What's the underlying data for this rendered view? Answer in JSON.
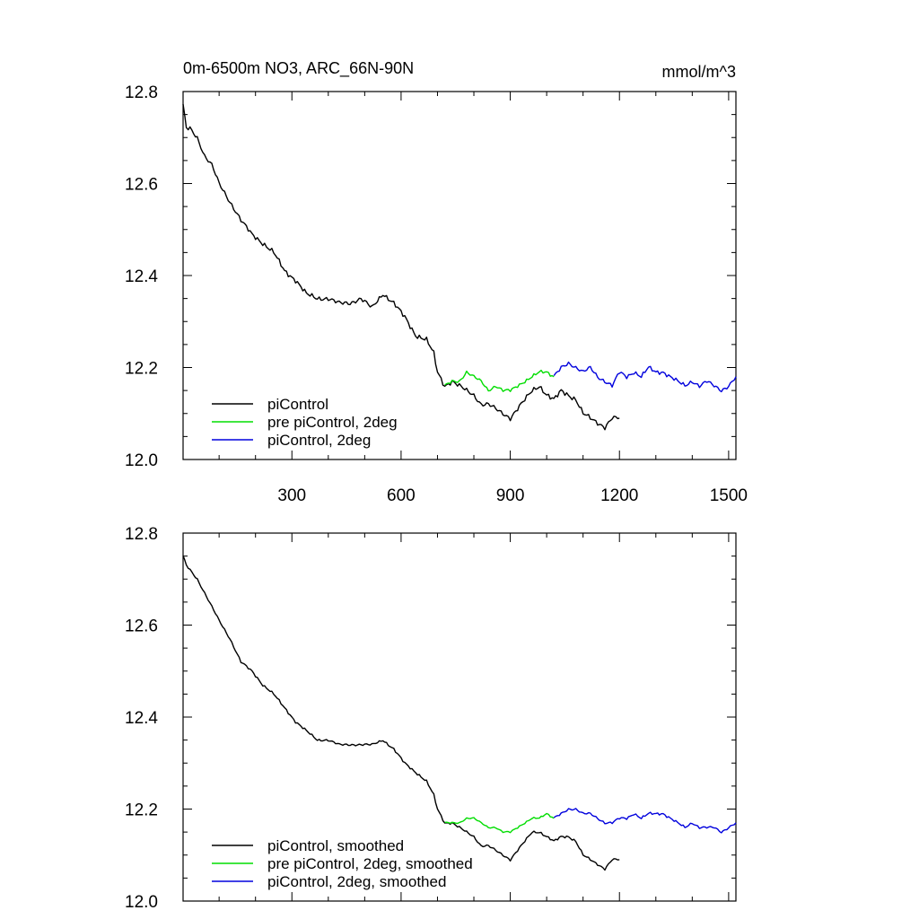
{
  "figure": {
    "title": "0m-6500m NO3, ARC_66N-90N",
    "units": "mmol/m^3"
  },
  "colors": {
    "piControl": "#000000",
    "pre_piControl_2deg": "#00dd00",
    "piControl_2deg": "#0000dd"
  },
  "chart_data": [
    {
      "type": "line",
      "title": "0m-6500m NO3, ARC_66N-90N",
      "units": "mmol/m^3",
      "xlim": [
        1,
        1520
      ],
      "ylim": [
        12.0,
        12.8
      ],
      "xticks": [
        300,
        600,
        900,
        1200,
        1500
      ],
      "yticks": [
        12.0,
        12.2,
        12.4,
        12.6,
        12.8
      ],
      "ytick_labels": [
        "12.0",
        "12.2",
        "12.4",
        "12.6",
        "12.8"
      ],
      "xtick_labels": [
        "300",
        "600",
        "900",
        "1200",
        "1500"
      ],
      "legend": "bottom-left",
      "series": [
        {
          "name": "piControl",
          "key": "piControl",
          "noise": 0.006,
          "x": [
            1,
            10,
            20,
            40,
            60,
            80,
            100,
            130,
            160,
            190,
            220,
            250,
            280,
            310,
            340,
            370,
            400,
            430,
            460,
            490,
            520,
            550,
            580,
            610,
            640,
            670,
            690,
            700,
            720,
            740,
            760,
            780,
            800,
            820,
            840,
            860,
            880,
            900,
            920,
            940,
            960,
            980,
            1000,
            1020,
            1040,
            1060,
            1080,
            1100,
            1120,
            1140,
            1160,
            1180,
            1200
          ],
          "y": [
            12.77,
            12.72,
            12.72,
            12.7,
            12.66,
            12.64,
            12.6,
            12.56,
            12.52,
            12.49,
            12.47,
            12.45,
            12.41,
            12.39,
            12.36,
            12.35,
            12.35,
            12.34,
            12.34,
            12.35,
            12.33,
            12.36,
            12.34,
            12.31,
            12.27,
            12.26,
            12.23,
            12.19,
            12.16,
            12.17,
            12.16,
            12.15,
            12.14,
            12.12,
            12.12,
            12.11,
            12.1,
            12.09,
            12.11,
            12.13,
            12.15,
            12.16,
            12.14,
            12.13,
            12.15,
            12.14,
            12.13,
            12.1,
            12.09,
            12.08,
            12.07,
            12.09,
            12.09
          ]
        },
        {
          "name": "pre piControl, 2deg",
          "key": "pre_piControl_2deg",
          "noise": 0.004,
          "x": [
            720,
            740,
            760,
            780,
            800,
            820,
            840,
            860,
            880,
            900,
            920,
            940,
            960,
            980,
            1000,
            1020
          ],
          "y": [
            12.16,
            12.17,
            12.17,
            12.19,
            12.18,
            12.17,
            12.15,
            12.16,
            12.15,
            12.15,
            12.16,
            12.17,
            12.18,
            12.19,
            12.19,
            12.18
          ]
        },
        {
          "name": "piControl, 2deg",
          "key": "piControl_2deg",
          "noise": 0.005,
          "x": [
            1020,
            1040,
            1060,
            1080,
            1100,
            1120,
            1140,
            1160,
            1180,
            1200,
            1220,
            1240,
            1260,
            1280,
            1300,
            1320,
            1340,
            1360,
            1380,
            1400,
            1420,
            1440,
            1460,
            1480,
            1500,
            1520
          ],
          "y": [
            12.18,
            12.2,
            12.21,
            12.2,
            12.19,
            12.2,
            12.18,
            12.17,
            12.16,
            12.19,
            12.18,
            12.19,
            12.18,
            12.2,
            12.19,
            12.19,
            12.18,
            12.17,
            12.16,
            12.17,
            12.16,
            12.17,
            12.16,
            12.15,
            12.16,
            12.18
          ]
        }
      ]
    },
    {
      "type": "line",
      "xlim": [
        1,
        1520
      ],
      "ylim": [
        12.0,
        12.8
      ],
      "xticks": [
        300,
        600,
        900,
        1200,
        1500
      ],
      "yticks": [
        12.0,
        12.2,
        12.4,
        12.6,
        12.8
      ],
      "ytick_labels": [
        "12.0",
        "12.2",
        "12.4",
        "12.6",
        "12.8"
      ],
      "legend": "bottom-left",
      "series": [
        {
          "name": "piControl, smoothed",
          "key": "piControl",
          "noise": 0.003,
          "x": [
            1,
            10,
            20,
            40,
            60,
            80,
            100,
            130,
            160,
            190,
            220,
            250,
            280,
            310,
            340,
            370,
            400,
            430,
            460,
            490,
            520,
            550,
            580,
            610,
            640,
            670,
            690,
            700,
            720,
            740,
            760,
            780,
            800,
            820,
            840,
            860,
            880,
            900,
            920,
            940,
            960,
            980,
            1000,
            1020,
            1040,
            1060,
            1080,
            1100,
            1120,
            1140,
            1160,
            1180,
            1200
          ],
          "y": [
            12.75,
            12.73,
            12.72,
            12.7,
            12.67,
            12.64,
            12.61,
            12.57,
            12.52,
            12.5,
            12.47,
            12.45,
            12.42,
            12.39,
            12.37,
            12.35,
            12.35,
            12.34,
            12.34,
            12.34,
            12.34,
            12.35,
            12.33,
            12.3,
            12.28,
            12.26,
            12.23,
            12.2,
            12.17,
            12.17,
            12.16,
            12.15,
            12.14,
            12.12,
            12.12,
            12.11,
            12.1,
            12.09,
            12.11,
            12.13,
            12.15,
            12.15,
            12.14,
            12.13,
            12.14,
            12.14,
            12.13,
            12.1,
            12.09,
            12.08,
            12.07,
            12.09,
            12.09
          ]
        },
        {
          "name": "pre piControl, 2deg, smoothed",
          "key": "pre_piControl_2deg",
          "noise": 0.002,
          "x": [
            720,
            740,
            760,
            780,
            800,
            820,
            840,
            860,
            880,
            900,
            920,
            940,
            960,
            980,
            1000,
            1020
          ],
          "y": [
            12.17,
            12.17,
            12.17,
            12.18,
            12.18,
            12.17,
            12.16,
            12.16,
            12.15,
            12.15,
            12.16,
            12.17,
            12.18,
            12.18,
            12.19,
            12.18
          ]
        },
        {
          "name": "piControl, 2deg, smoothed",
          "key": "piControl_2deg",
          "noise": 0.003,
          "x": [
            1020,
            1040,
            1060,
            1080,
            1100,
            1120,
            1140,
            1160,
            1180,
            1200,
            1220,
            1240,
            1260,
            1280,
            1300,
            1320,
            1340,
            1360,
            1380,
            1400,
            1420,
            1440,
            1460,
            1480,
            1500,
            1520
          ],
          "y": [
            12.18,
            12.19,
            12.2,
            12.2,
            12.19,
            12.19,
            12.18,
            12.17,
            12.17,
            12.18,
            12.18,
            12.19,
            12.18,
            12.19,
            12.19,
            12.19,
            12.18,
            12.17,
            12.16,
            12.17,
            12.16,
            12.16,
            12.16,
            12.15,
            12.16,
            12.17
          ]
        }
      ]
    }
  ]
}
